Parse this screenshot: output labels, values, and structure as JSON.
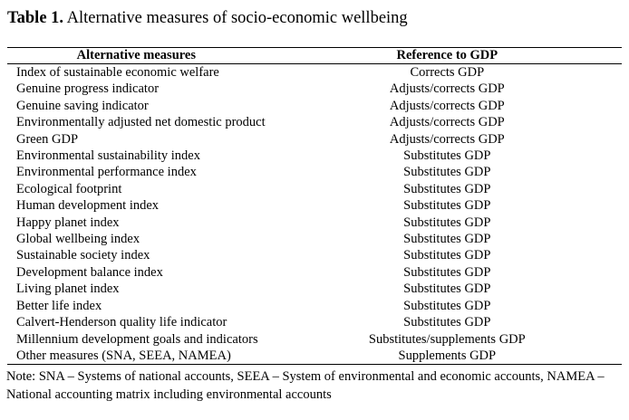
{
  "caption": {
    "label": "Table 1.",
    "title": "Alternative measures of socio-economic wellbeing"
  },
  "table": {
    "headers": {
      "measure": "Alternative measures",
      "reference": "Reference to GDP"
    },
    "rows": [
      {
        "measure": "Index of sustainable economic welfare",
        "reference": "Corrects GDP"
      },
      {
        "measure": "Genuine progress indicator",
        "reference": "Adjusts/corrects GDP"
      },
      {
        "measure": "Genuine saving indicator",
        "reference": "Adjusts/corrects GDP"
      },
      {
        "measure": "Environmentally adjusted net domestic product",
        "reference": "Adjusts/corrects GDP"
      },
      {
        "measure": "Green GDP",
        "reference": "Adjusts/corrects GDP"
      },
      {
        "measure": "Environmental sustainability index",
        "reference": "Substitutes GDP"
      },
      {
        "measure": "Environmental performance index",
        "reference": "Substitutes GDP"
      },
      {
        "measure": "Ecological footprint",
        "reference": "Substitutes GDP"
      },
      {
        "measure": "Human development index",
        "reference": "Substitutes GDP"
      },
      {
        "measure": "Happy planet index",
        "reference": "Substitutes GDP"
      },
      {
        "measure": "Global wellbeing index",
        "reference": "Substitutes GDP"
      },
      {
        "measure": "Sustainable society index",
        "reference": "Substitutes GDP"
      },
      {
        "measure": "Development balance index",
        "reference": "Substitutes GDP"
      },
      {
        "measure": "Living planet index",
        "reference": "Substitutes GDP"
      },
      {
        "measure": "Better life index",
        "reference": "Substitutes GDP"
      },
      {
        "measure": "Calvert-Henderson quality life indicator",
        "reference": "Substitutes GDP"
      },
      {
        "measure": "Millennium development goals and indicators",
        "reference": "Substitutes/supplements GDP"
      },
      {
        "measure": "Other measures (SNA, SEEA, NAMEA)",
        "reference": "Supplements GDP"
      }
    ]
  },
  "note": "Note: SNA – Systems of national accounts, SEEA – System of environmental and economic accounts, NAMEA – National accounting matrix including environmental accounts"
}
